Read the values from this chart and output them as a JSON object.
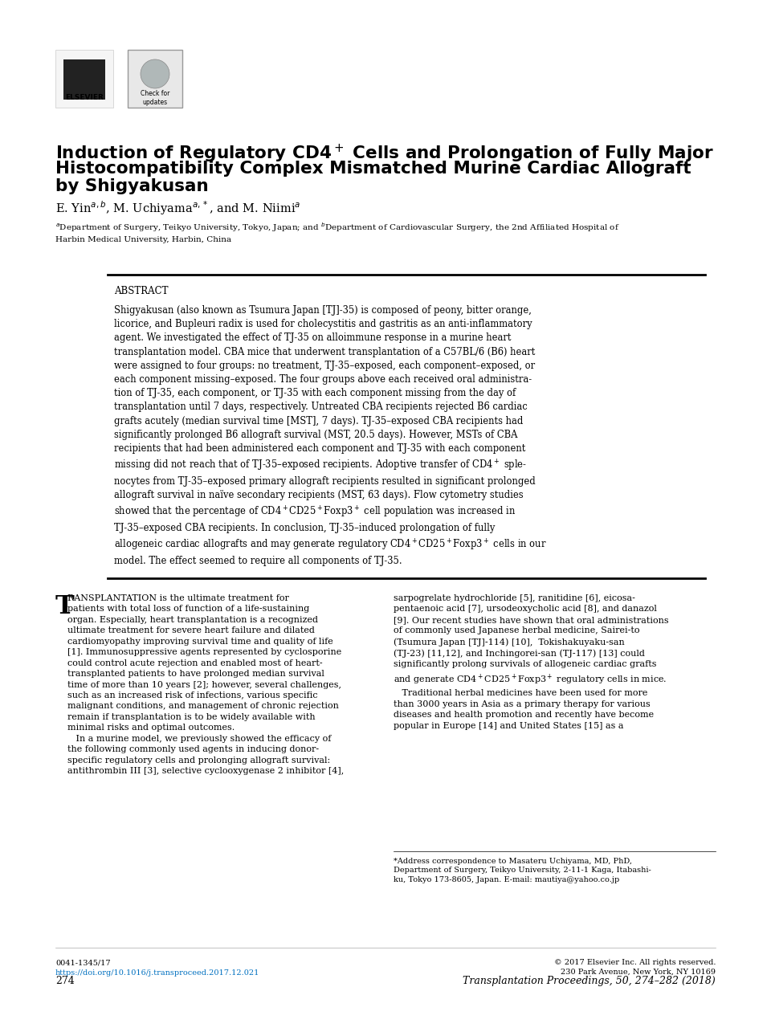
{
  "bg_color": "#ffffff",
  "page_width": 9.6,
  "page_height": 12.9,
  "title_line1": "Induction of Regulatory CD4",
  "title_line2": " Cells and Prolongation of Fully Major",
  "title_line3": "Histocompatibility Complex Mismatched Murine Cardiac Allograft",
  "title_line4": "by Shigyakusan",
  "abstract_label": "ABSTRACT",
  "abstract_text": "Shigyakusan (also known as Tsumura Japan [TJ]-35) is composed of peony, bitter orange,\nlicorice, and Bupleuri radix is used for cholecystitis and gastritis as an anti-inflammatory\nagent. We investigated the effect of TJ-35 on alloimmune response in a murine heart\ntransplantation model. CBA mice that underwent transplantation of a C57BL/6 (B6) heart\nwere assigned to four groups: no treatment, TJ-35–exposed, each component–exposed, or\neach component missing–exposed. The four groups above each received oral administra-\ntion of TJ-35, each component, or TJ-35 with each component missing from the day of\ntransplantation until 7 days, respectively. Untreated CBA recipients rejected B6 cardiac\ngrafts acutely (median survival time [MST], 7 days). TJ-35–exposed CBA recipients had\nsignificantly prolonged B6 allograft survival (MST, 20.5 days). However, MSTs of CBA\nrecipients that had been administered each component and TJ-35 with each component\nmissing did not reach that of TJ-35–exposed recipients. Adoptive transfer of CD4$^+$ sple-\nnocytes from TJ-35–exposed primary allograft recipients resulted in significant prolonged\nallograft survival in naïve secondary recipients (MST, 63 days). Flow cytometry studies\nshowed that the percentage of CD4$^+$CD25$^+$Foxp3$^+$ cell population was increased in\nTJ-35–exposed CBA recipients. In conclusion, TJ-35–induced prolongation of fully\nallogeneic cardiac allografts and may generate regulatory CD4$^+$CD25$^+$Foxp3$^+$ cells in our\nmodel. The effect seemed to require all components of TJ-35.",
  "authors_line": "E. Yin$^{a,b}$, M. Uchiyama$^{a,*}$, and M. Niimi$^{a}$",
  "affiliation_line": "$^{a}$Department of Surgery, Teikyo University, Tokyo, Japan; and $^{b}$Department of Cardiovascular Surgery, the 2nd Affiliated Hospital of\nHarbin Medical University, Harbin, China",
  "body_col1_lines": [
    "RANSPLANTATION is the ultimate treatment for",
    "patients with total loss of function of a life-sustaining",
    "organ. Especially, heart transplantation is a recognized",
    "ultimate treatment for severe heart failure and dilated",
    "cardiomyopathy improving survival time and quality of life",
    "[1]. Immunosuppressive agents represented by cyclosporine",
    "could control acute rejection and enabled most of heart-",
    "transplanted patients to have prolonged median survival",
    "time of more than 10 years [2]; however, several challenges,",
    "such as an increased risk of infections, various specific",
    "malignant conditions, and management of chronic rejection",
    "remain if transplantation is to be widely available with",
    "minimal risks and optimal outcomes.",
    "   In a murine model, we previously showed the efficacy of",
    "the following commonly used agents in inducing donor-",
    "specific regulatory cells and prolonging allograft survival:",
    "antithrombin III [3], selective cyclooxygenase 2 inhibitor [4],"
  ],
  "body_col2_lines": [
    "sarpogrelate hydrochloride [5], ranitidine [6], eicosa-",
    "pentaenoic acid [7], ursodeoxycholic acid [8], and danazol",
    "[9]. Our recent studies have shown that oral administrations",
    "of commonly used Japanese herbal medicine, Sairei-to",
    "(Tsumura Japan [TJ]-114) [10],  Tokishakuyaku-san",
    "(TJ-23) [11,12], and Inchingorei-san (TJ-117) [13] could",
    "significantly prolong survivals of allogeneic cardiac grafts",
    "and generate CD4$^+$CD25$^+$Foxp3$^+$ regulatory cells in mice.",
    "   Traditional herbal medicines have been used for more",
    "than 3000 years in Asia as a primary therapy for various",
    "diseases and health promotion and recently have become",
    "popular in Europe [14] and United States [15] as a"
  ],
  "footnote_line": "*Address correspondence to Masateru Uchiyama, MD, PhD,\nDepartment of Surgery, Teikyo University, 2-11-1 Kaga, Itabashi-\nku, Tokyo 173-8605, Japan. E-mail: mautiya@yahoo.co.jp",
  "footer_issn": "0041-1345/17",
  "footer_doi": "https://doi.org/10.1016/j.transproceed.2017.12.021",
  "footer_copy": "© 2017 Elsevier Inc. All rights reserved.\n230 Park Avenue, New York, NY 10169",
  "footer_page": "274",
  "footer_journal": "Transplantation Proceedings, 50, 274–282 (2018)",
  "link_color": "#0070c0",
  "text_color": "#000000",
  "title_color": "#000000"
}
